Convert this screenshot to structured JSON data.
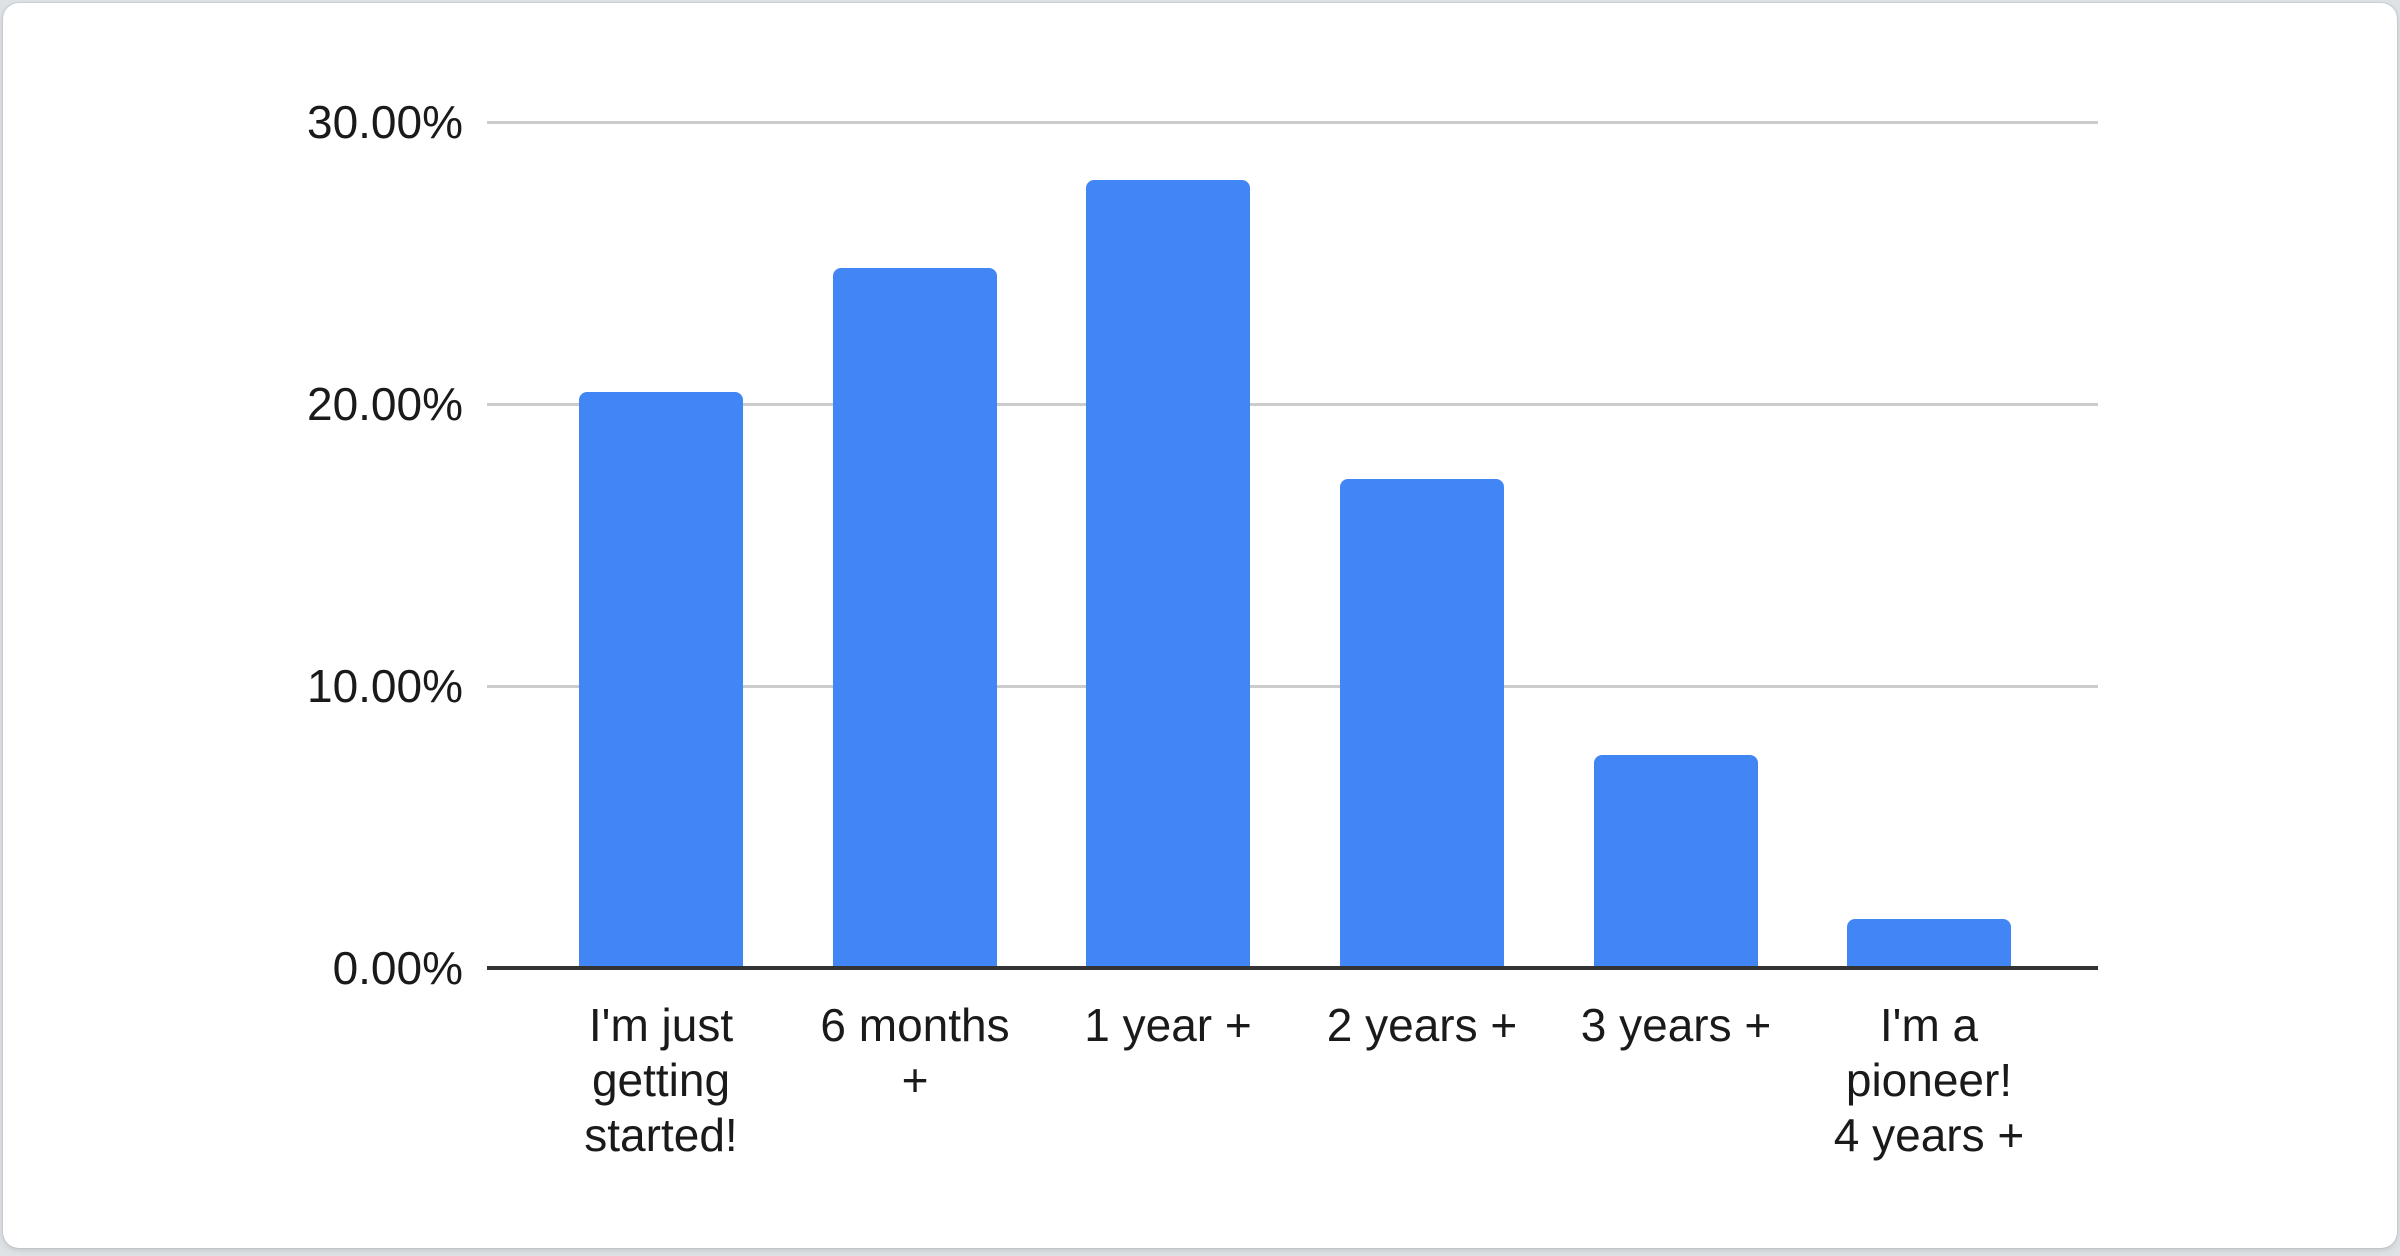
{
  "window": {
    "background_color": "#dfe2e5",
    "card_background": "#ffffff"
  },
  "chart_data": {
    "type": "bar",
    "title": "",
    "xlabel": "",
    "ylabel": "",
    "categories": [
      "I'm just getting started!",
      "6 months +",
      "1 year +",
      "2 years +",
      "3 years +",
      "I'm a pioneer! 4 years +"
    ],
    "values": [
      20.4,
      24.8,
      27.9,
      17.3,
      7.5,
      1.7
    ],
    "value_unit": "%",
    "ylim": [
      0,
      30
    ],
    "y_ticks": [
      "0.00%",
      "10.00%",
      "20.00%",
      "30.00%"
    ],
    "y_tick_values": [
      0,
      10,
      20,
      30
    ],
    "grid": true,
    "legend": "none",
    "bar_color": "#4285f4",
    "gridline_color": "#cccccc",
    "axis_color": "#333333",
    "label_color": "#1a1a1a",
    "label_lines": [
      [
        "I'm just",
        "getting",
        "started!"
      ],
      [
        "6 months",
        "+"
      ],
      [
        "1 year +"
      ],
      [
        "2 years +"
      ],
      [
        "3 years +"
      ],
      [
        "I'm a",
        "pioneer!",
        "4 years +"
      ]
    ]
  }
}
